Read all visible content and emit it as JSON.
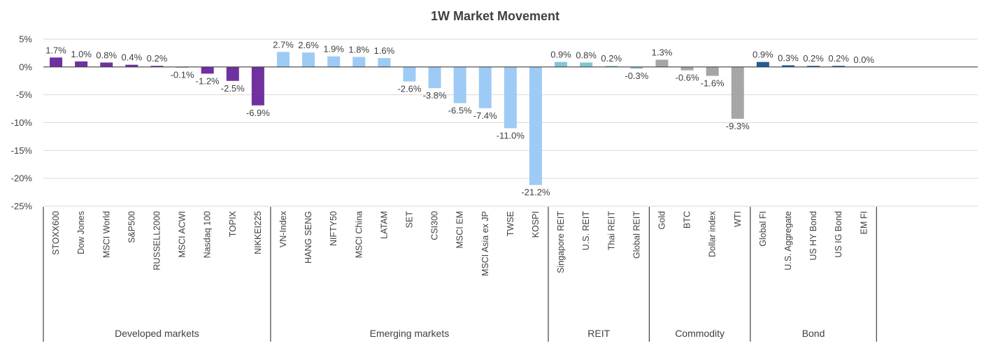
{
  "chart_data": {
    "type": "bar",
    "title": "1W Market Movement",
    "ylim": [
      -25,
      5
    ],
    "yticks": [
      "5%",
      "0%",
      "-5%",
      "-10%",
      "-15%",
      "-20%",
      "-25%"
    ],
    "grid": true,
    "legend": "none",
    "groups": [
      {
        "name": "Developed  markets",
        "color": "#7030A0",
        "categories": [
          "STOXX600",
          "Dow Jones",
          "MSCI World",
          "S&P500",
          "RUSSELL2000",
          "MSCI ACWI",
          "Nasdaq 100",
          "TOPIX",
          "NIKKEI225"
        ],
        "values": [
          1.7,
          1.0,
          0.8,
          0.4,
          0.2,
          -0.1,
          -1.2,
          -2.5,
          -6.9
        ],
        "labels": [
          "1.7%",
          "1.0%",
          "0.8%",
          "0.4%",
          "0.2%",
          "-0.1%",
          "-1.2%",
          "-2.5%",
          "-6.9%"
        ]
      },
      {
        "name": "Emerging markets",
        "color": "#9DCBF5",
        "categories": [
          "VN-Index",
          "HANG SENG",
          "NIFTY50",
          "MSCI China",
          "LATAM",
          "SET",
          "CSI300",
          "MSCI EM",
          "MSCI Asia ex JP",
          "TWSE",
          "KOSPI"
        ],
        "values": [
          2.7,
          2.6,
          1.9,
          1.8,
          1.6,
          -2.6,
          -3.8,
          -6.5,
          -7.4,
          -11.0,
          -21.2
        ],
        "labels": [
          "2.7%",
          "2.6%",
          "1.9%",
          "1.8%",
          "1.6%",
          "-2.6%",
          "-3.8%",
          "-6.5%",
          "-7.4%",
          "-11.0%",
          "-21.2%"
        ]
      },
      {
        "name": "REIT",
        "color": "#7FC7D1",
        "categories": [
          "Singapore REIT",
          "U.S. REIT",
          "Thai REIT",
          "Global REIT"
        ],
        "values": [
          0.9,
          0.8,
          0.2,
          -0.3
        ],
        "labels": [
          "0.9%",
          "0.8%",
          "0.2%",
          "-0.3%"
        ]
      },
      {
        "name": "Commodity",
        "color": "#A6A6A6",
        "categories": [
          "Gold",
          "BTC",
          "Dollar index",
          "WTI"
        ],
        "values": [
          1.3,
          -0.6,
          -1.6,
          -9.3
        ],
        "labels": [
          "1.3%",
          "-0.6%",
          "-1.6%",
          "-9.3%"
        ]
      },
      {
        "name": "Bond",
        "color": "#1F5C99",
        "categories": [
          "Global FI",
          "U.S. Aggregate",
          "US HY Bond",
          "US IG Bond",
          "EM FI"
        ],
        "values": [
          0.9,
          0.3,
          0.2,
          0.2,
          0.0
        ],
        "labels": [
          "0.9%",
          "0.3%",
          "0.2%",
          "0.2%",
          "0.0%"
        ]
      }
    ]
  }
}
